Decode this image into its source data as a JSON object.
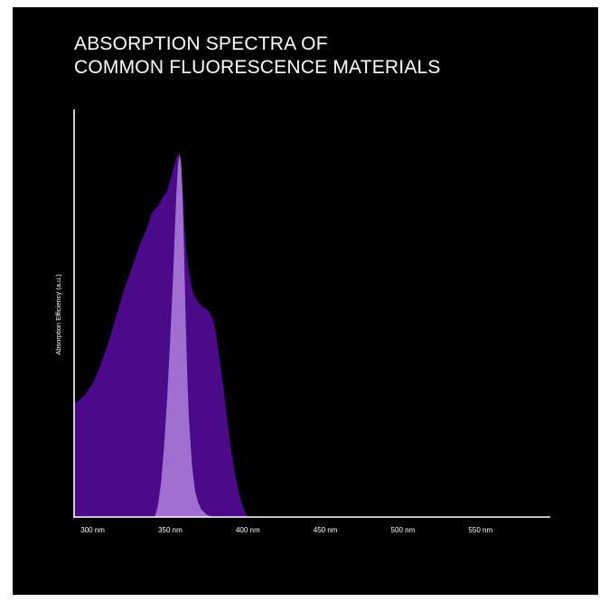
{
  "chart_data": {
    "type": "area",
    "title_lines": [
      "ABSORPTION SPECTRA OF",
      "COMMON FLUORESCENCE MATERIALS"
    ],
    "xlabel": "",
    "ylabel": "Absorption Efficiency (a.u.)",
    "x_ticks": [
      {
        "value": 300,
        "label": "300 nm"
      },
      {
        "value": 350,
        "label": "350 nm"
      },
      {
        "value": 400,
        "label": "400 nm"
      },
      {
        "value": 450,
        "label": "450 nm"
      },
      {
        "value": 500,
        "label": "500 nm"
      },
      {
        "value": 550,
        "label": "550 nm"
      }
    ],
    "xlim": [
      288,
      595
    ],
    "ylim": [
      0,
      1.1
    ],
    "grid": false,
    "series": [
      {
        "color": "#4b0a8a",
        "opacity": 1,
        "x": [
          288,
          290,
          295,
          300,
          305,
          310,
          315,
          320,
          325,
          330,
          335,
          338,
          340,
          342,
          345,
          348,
          350,
          352,
          354,
          355,
          356,
          357,
          358,
          359,
          360,
          362,
          365,
          368,
          370,
          372,
          375,
          378,
          380,
          382,
          384,
          386,
          388,
          390,
          392,
          394,
          396,
          398,
          400
        ],
        "y": [
          0.31,
          0.31,
          0.33,
          0.36,
          0.41,
          0.47,
          0.54,
          0.61,
          0.67,
          0.73,
          0.78,
          0.82,
          0.83,
          0.84,
          0.86,
          0.88,
          0.91,
          0.94,
          0.97,
          0.98,
          0.97,
          0.94,
          0.88,
          0.8,
          0.73,
          0.66,
          0.6,
          0.58,
          0.57,
          0.565,
          0.555,
          0.53,
          0.48,
          0.42,
          0.36,
          0.29,
          0.22,
          0.16,
          0.11,
          0.07,
          0.04,
          0.015,
          0
        ]
      },
      {
        "color": "#b98ce6",
        "opacity": 0.78,
        "x": [
          340,
          342,
          344,
          346,
          348,
          350,
          352,
          353,
          354,
          355,
          356,
          357,
          358,
          359,
          360,
          361,
          362,
          364,
          366,
          368,
          370,
          374,
          378
        ],
        "y": [
          0,
          0.03,
          0.09,
          0.19,
          0.32,
          0.48,
          0.67,
          0.78,
          0.88,
          0.95,
          0.98,
          0.96,
          0.86,
          0.7,
          0.52,
          0.38,
          0.27,
          0.14,
          0.07,
          0.04,
          0.02,
          0.005,
          0
        ]
      }
    ]
  }
}
